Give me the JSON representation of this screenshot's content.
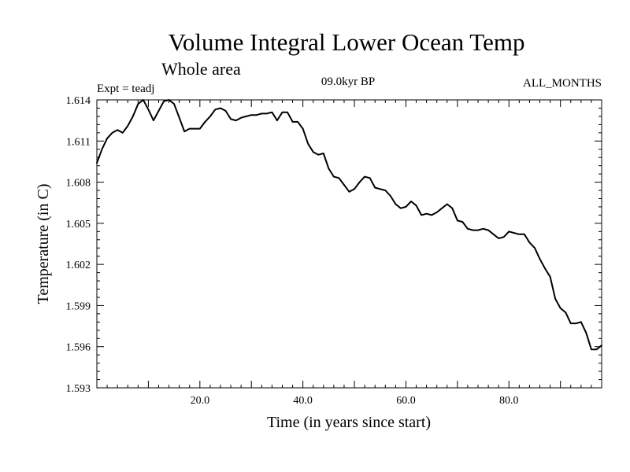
{
  "chart_data": {
    "type": "line",
    "title": "Volume Integral Lower Ocean Temp",
    "subtitle": "Whole area",
    "experiment": "Expt = teadj",
    "period": "09.0kyr BP",
    "months": "ALL_MONTHS",
    "xlabel": "Time (in years since start)",
    "ylabel": "Temperature (in C)",
    "xlim": [
      0,
      98
    ],
    "ylim": [
      1.593,
      1.614
    ],
    "x_tick_values": [
      20,
      40,
      60,
      80
    ],
    "x_tick_labels": [
      "20.0",
      "40.0",
      "60.0",
      "80.0"
    ],
    "y_tick_values": [
      1.593,
      1.596,
      1.599,
      1.602,
      1.605,
      1.608,
      1.611,
      1.614
    ],
    "y_tick_labels": [
      "1.593",
      "1.596",
      "1.599",
      "1.602",
      "1.605",
      "1.608",
      "1.611",
      "1.614"
    ],
    "series": [
      {
        "name": "Volume Integral Lower Ocean Temp",
        "x": [
          0,
          1,
          2,
          3,
          4,
          5,
          6,
          7,
          8,
          9,
          10,
          11,
          12,
          13,
          14,
          15,
          16,
          17,
          18,
          19,
          20,
          21,
          22,
          23,
          24,
          25,
          26,
          27,
          28,
          29,
          30,
          31,
          32,
          33,
          34,
          35,
          36,
          37,
          38,
          39,
          40,
          41,
          42,
          43,
          44,
          45,
          46,
          47,
          48,
          49,
          50,
          51,
          52,
          53,
          54,
          55,
          56,
          57,
          58,
          59,
          60,
          61,
          62,
          63,
          64,
          65,
          66,
          67,
          68,
          69,
          70,
          71,
          72,
          73,
          74,
          75,
          76,
          77,
          78,
          79,
          80,
          81,
          82,
          83,
          84,
          85,
          86,
          87,
          88,
          89,
          90,
          91,
          92,
          93,
          94,
          95,
          96,
          97,
          98
        ],
        "values": [
          1.6094,
          1.6104,
          1.6112,
          1.6116,
          1.6118,
          1.6116,
          1.6121,
          1.6128,
          1.6137,
          1.614,
          1.6133,
          1.6125,
          1.6132,
          1.6139,
          1.614,
          1.6137,
          1.6127,
          1.6117,
          1.6119,
          1.6119,
          1.6119,
          1.6124,
          1.6128,
          1.6133,
          1.6134,
          1.6132,
          1.6126,
          1.6125,
          1.6127,
          1.6128,
          1.6129,
          1.6129,
          1.613,
          1.613,
          1.6131,
          1.6125,
          1.6131,
          1.6131,
          1.6124,
          1.6124,
          1.6119,
          1.6108,
          1.6102,
          1.61,
          1.6101,
          1.609,
          1.6084,
          1.6083,
          1.6078,
          1.6073,
          1.6075,
          1.608,
          1.6084,
          1.6083,
          1.6076,
          1.6075,
          1.6074,
          1.607,
          1.6064,
          1.6061,
          1.6062,
          1.6066,
          1.6063,
          1.6056,
          1.6057,
          1.6056,
          1.6058,
          1.6061,
          1.6064,
          1.6061,
          1.6052,
          1.6051,
          1.6046,
          1.6045,
          1.6045,
          1.6046,
          1.6045,
          1.6042,
          1.6039,
          1.604,
          1.6044,
          1.6043,
          1.6042,
          1.6042,
          1.6036,
          1.6032,
          1.6024,
          1.6017,
          1.6011,
          1.5995,
          1.5988,
          1.5985,
          1.5977,
          1.5977,
          1.5978,
          1.597,
          1.5958,
          1.5958,
          1.5961
        ]
      }
    ]
  }
}
